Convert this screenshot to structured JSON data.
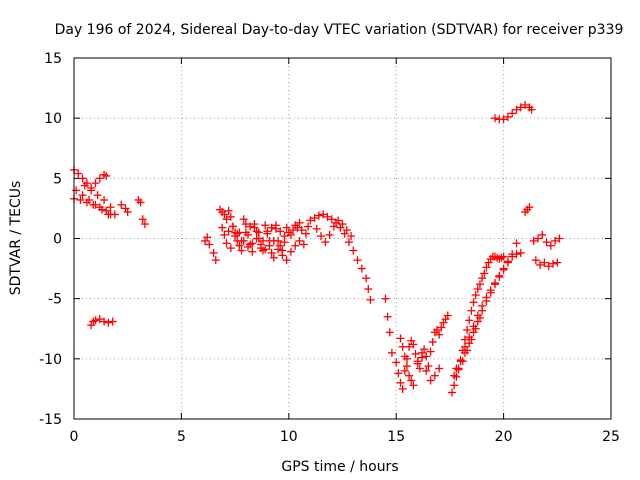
{
  "chart_data": {
    "type": "scatter",
    "title": "Day 196 of 2024, Sidereal Day-to-day VTEC variation (SDTVAR) for receiver p339",
    "xlabel": "GPS time / hours",
    "ylabel": "SDTVAR / TECUs",
    "xlim": [
      0,
      25
    ],
    "ylim": [
      -15,
      15
    ],
    "xticks": [
      "0",
      "5",
      "10",
      "15",
      "20",
      "25"
    ],
    "yticks": [
      "-15",
      "-10",
      "-5",
      "0",
      "5",
      "10",
      "15"
    ],
    "grid": true,
    "marker": "+",
    "marker_color": "#ff0000",
    "series": [
      {
        "x": [
          0.0,
          0.2,
          0.4,
          0.6,
          0.8,
          1.0,
          1.2,
          1.4,
          1.5,
          0.0,
          0.3,
          0.6,
          0.9,
          1.2,
          1.5,
          1.7,
          0.1,
          0.4,
          0.7,
          1.0,
          1.3,
          1.6,
          0.5,
          0.8,
          1.1,
          1.4,
          1.7,
          1.9,
          2.2,
          2.4,
          2.5,
          3.0,
          3.1,
          3.2,
          3.3,
          0.8,
          0.9,
          1.0,
          1.2,
          1.4,
          1.6,
          1.8,
          6.1,
          6.2,
          6.3,
          6.5,
          6.6,
          6.8,
          6.9,
          7.0,
          7.1,
          7.2,
          7.3,
          7.4,
          7.5,
          7.6,
          7.7,
          7.8,
          7.9,
          8.0,
          8.1,
          8.2,
          8.3,
          8.4,
          8.5,
          8.6,
          8.7,
          8.8,
          8.9,
          9.0,
          9.1,
          9.2,
          9.3,
          9.4,
          9.5,
          9.6,
          9.7,
          9.8,
          9.9,
          10.0,
          10.1,
          10.2,
          10.3,
          10.4,
          10.5,
          10.6,
          10.7,
          10.8,
          10.9,
          11.0,
          11.2,
          11.4,
          11.6,
          11.8,
          12.0,
          12.2,
          12.4,
          12.6,
          12.8,
          13.0,
          13.2,
          13.4,
          13.6,
          13.7,
          13.8,
          11.3,
          11.5,
          11.7,
          11.9,
          12.1,
          12.3,
          12.5,
          12.7,
          12.9,
          7.0,
          7.2,
          7.4,
          7.6,
          7.8,
          8.0,
          8.2,
          8.4,
          8.6,
          8.8,
          9.0,
          9.2,
          9.4,
          9.6,
          9.8,
          6.9,
          7.1,
          7.3,
          7.5,
          7.7,
          7.9,
          8.1,
          8.3,
          8.5,
          8.7,
          8.9,
          9.1,
          9.3,
          9.5,
          9.7,
          9.9,
          10.1,
          10.3,
          10.5,
          14.5,
          14.6,
          14.7,
          14.8,
          15.0,
          15.1,
          15.2,
          15.3,
          15.4,
          15.5,
          15.6,
          15.7,
          15.8,
          15.9,
          16.0,
          16.1,
          16.2,
          16.3,
          16.4,
          16.5,
          16.6,
          16.7,
          16.8,
          16.9,
          17.0,
          17.1,
          17.2,
          17.3,
          17.4,
          15.2,
          15.3,
          15.4,
          15.5,
          15.6,
          15.7,
          15.8,
          16.0,
          16.2,
          16.4,
          16.6,
          16.8,
          17.0,
          17.6,
          17.7,
          17.8,
          17.9,
          18.0,
          18.1,
          18.2,
          18.3,
          18.4,
          18.5,
          18.6,
          18.7,
          18.8,
          18.9,
          19.0,
          19.1,
          19.2,
          19.3,
          19.4,
          19.5,
          19.6,
          19.7,
          19.8,
          19.9,
          20.0,
          17.8,
          18.0,
          18.2,
          18.4,
          18.6,
          18.8,
          19.0,
          19.2,
          19.4,
          19.6,
          19.8,
          20.0,
          20.2,
          20.4,
          20.6,
          20.8,
          18.2,
          18.4,
          18.6,
          18.8,
          19.0,
          19.2,
          19.4,
          19.6,
          19.8,
          20.0,
          20.2,
          20.4,
          20.6,
          17.7,
          17.9,
          18.1,
          18.3,
          18.5,
          18.7,
          18.9,
          19.6,
          19.8,
          20.0,
          20.2,
          20.4,
          20.6,
          20.8,
          21.0,
          21.2,
          21.3,
          21.0,
          21.1,
          21.2,
          21.4,
          21.6,
          21.8,
          22.0,
          22.2,
          22.4,
          22.6,
          21.5,
          21.7,
          21.9,
          22.1,
          22.3,
          22.5
        ],
        "y": [
          5.7,
          5.4,
          5.0,
          4.6,
          4.2,
          4.6,
          5.0,
          5.3,
          5.2,
          3.3,
          3.2,
          3.0,
          2.8,
          2.6,
          2.3,
          2.0,
          4.0,
          3.6,
          3.2,
          2.8,
          2.4,
          2.0,
          4.4,
          4.0,
          3.6,
          3.2,
          2.6,
          2.0,
          2.8,
          2.5,
          2.2,
          3.2,
          3.0,
          1.6,
          1.2,
          -7.2,
          -6.9,
          -6.8,
          -6.7,
          -6.9,
          -7.0,
          -6.9,
          -0.2,
          0.1,
          -0.5,
          -1.2,
          -1.8,
          2.4,
          2.2,
          2.0,
          1.6,
          2.3,
          1.8,
          1.0,
          0.5,
          -0.2,
          -0.6,
          -1.0,
          1.6,
          1.2,
          0.3,
          -0.5,
          -1.1,
          0.9,
          0.6,
          0.0,
          -0.8,
          -1.0,
          1.1,
          0.6,
          -0.2,
          -1.2,
          -1.6,
          0.8,
          -0.2,
          -0.6,
          -1.0,
          0.2,
          0.9,
          0.5,
          0.3,
          0.7,
          1.1,
          0.9,
          1.3,
          0.7,
          -0.5,
          0.4,
          1.0,
          1.5,
          1.7,
          1.9,
          2.0,
          1.8,
          1.6,
          1.3,
          0.9,
          0.4,
          -0.3,
          -1.0,
          -1.8,
          -2.5,
          -3.3,
          -4.2,
          -5.1,
          0.8,
          0.2,
          -0.3,
          0.3,
          1.0,
          1.5,
          1.2,
          0.7,
          0.2,
          0.3,
          0.6,
          1.0,
          0.4,
          -0.2,
          0.5,
          1.0,
          1.2,
          0.5,
          -0.2,
          0.4,
          0.9,
          1.1,
          0.6,
          -0.3,
          0.9,
          -0.4,
          -0.8,
          0.2,
          0.5,
          -0.2,
          -0.7,
          -0.4,
          0.0,
          -0.5,
          -0.9,
          -0.6,
          -0.2,
          -0.9,
          -1.4,
          -1.8,
          -1.1,
          -0.6,
          -0.2,
          -5.0,
          -6.5,
          -7.8,
          -9.5,
          -10.3,
          -11.2,
          -12.0,
          -12.5,
          -11.0,
          -10.0,
          -9.0,
          -8.5,
          -8.8,
          -9.6,
          -10.4,
          -10.8,
          -9.9,
          -9.2,
          -9.8,
          -10.6,
          -9.4,
          -8.6,
          -7.8,
          -7.6,
          -8.0,
          -7.4,
          -7.0,
          -6.7,
          -6.4,
          -8.3,
          -9.0,
          -9.8,
          -10.6,
          -11.4,
          -11.8,
          -12.2,
          -10.2,
          -9.5,
          -11.0,
          -11.8,
          -11.4,
          -10.8,
          -12.8,
          -12.2,
          -11.5,
          -10.8,
          -10.1,
          -9.3,
          -8.4,
          -7.6,
          -6.8,
          -6.0,
          -5.3,
          -4.7,
          -4.2,
          -3.8,
          -3.3,
          -2.9,
          -2.4,
          -2.0,
          -1.7,
          -1.5,
          -1.5,
          -1.6,
          -1.7,
          -1.6,
          -1.5,
          -10.8,
          -10.2,
          -9.5,
          -8.7,
          -7.8,
          -6.9,
          -6.0,
          -5.2,
          -4.5,
          -3.8,
          -3.1,
          -2.5,
          -1.9,
          -1.5,
          -1.3,
          -1.2,
          -9.0,
          -8.2,
          -7.3,
          -6.4,
          -5.6,
          -4.9,
          -4.3,
          -3.7,
          -3.2,
          -2.6,
          -2.0,
          -1.3,
          -0.4,
          -11.4,
          -10.9,
          -10.2,
          -9.3,
          -8.4,
          -7.5,
          -6.6,
          10.0,
          9.9,
          9.9,
          10.1,
          10.4,
          10.7,
          10.9,
          11.1,
          10.9,
          10.7,
          2.2,
          2.4,
          2.6,
          -0.2,
          0.0,
          0.3,
          -0.3,
          -0.6,
          -0.2,
          0.0,
          -1.8,
          -2.2,
          -2.0,
          -2.3,
          -2.1,
          -2.0
        ]
      }
    ]
  }
}
